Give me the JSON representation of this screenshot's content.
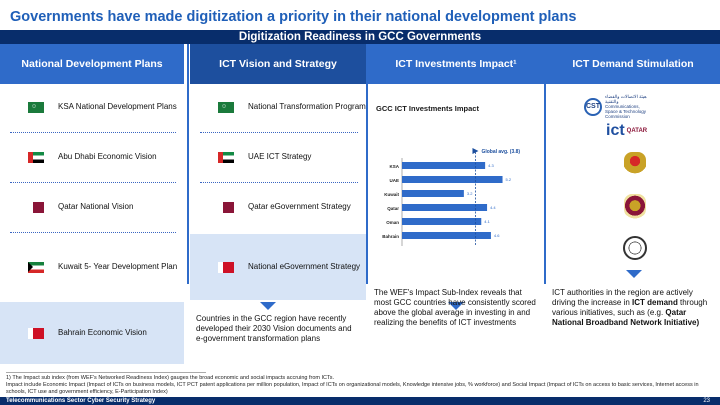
{
  "title": "Governments have made digitization a priority in their national development plans",
  "subtitle": "Digitization Readiness in GCC Governments",
  "columns": {
    "plans": {
      "header": "National Development Plans",
      "rows": [
        {
          "flag": "saudi-arabia-flag-icon",
          "label": "KSA National Development Plans"
        },
        {
          "flag": "uae-flag-icon",
          "label": "Abu Dhabi Economic Vision"
        },
        {
          "flag": "qatar-flag-icon",
          "label": "Qatar National Vision"
        },
        {
          "flag": "kuwait-flag-icon",
          "label": "Kuwait 5- Year Development Plan"
        },
        {
          "flag": "bahrain-flag-icon",
          "label": "Bahrain Economic Vision"
        }
      ]
    },
    "vision": {
      "header": "ICT Vision and Strategy",
      "rows": [
        {
          "flag": "saudi-arabia-flag-icon",
          "label": "National Transformation Program"
        },
        {
          "flag": "uae-flag-icon",
          "label": "UAE ICT Strategy"
        },
        {
          "flag": "qatar-flag-icon",
          "label": "Qatar eGovernment Strategy"
        },
        {
          "flag": "bahrain-flag-icon",
          "label": "National eGovernment Strategy"
        }
      ],
      "summary": "Countries in the GCC region have recently developed their 2030 Vision documents and e-government transformation plans"
    },
    "investments": {
      "header": "ICT Investments Impact¹",
      "summary": "The WEF's Impact Sub-Index reveals that most GCC countries have consistently scored above the global average in investing in and realizing the benefits of ICT investments"
    },
    "demand": {
      "header": "ICT Demand Stimulation",
      "summary_pre": "ICT authorities in the region are actively driving the increase in ",
      "summary_bold1": "ICT demand",
      "summary_mid": " through various initiatives, such as (e.g. ",
      "summary_bold2": "Qatar National Broadband Network Initiative)",
      "logos": [
        {
          "name": "cst-logo",
          "text": "CST",
          "caption": "هيئة الاتصالات والفضاء والتقنية Communications, Space & Technology Commission"
        },
        {
          "name": "ict-qatar-logo",
          "text": "ict",
          "caption": "QATAR"
        },
        {
          "name": "egypt-emblem-icon"
        },
        {
          "name": "jordan-emblem-icon"
        },
        {
          "name": "abu-dhabi-emblem-icon"
        }
      ]
    }
  },
  "chart_data": {
    "type": "bar",
    "orientation": "horizontal",
    "title": "GCC ICT Investments Impact",
    "categories": [
      "KSA",
      "UAE",
      "Kuwait",
      "Qatar",
      "Oman",
      "Bahrain"
    ],
    "values": [
      4.3,
      5.2,
      3.2,
      4.4,
      4.1,
      4.6
    ],
    "value_labels": [
      "4.3",
      "5.2",
      "3.2",
      "4.4",
      "4.1",
      "4.6"
    ],
    "reference_line": {
      "label": "Global avg. (3.8)",
      "value": 3.8
    },
    "xlim": [
      0,
      6
    ],
    "colors": {
      "bar": "#2f6bc9",
      "reference": "#1d4f9e"
    }
  },
  "footnotes": [
    "1) The Impact sub index (from WEF's Networked Readiness Index) gauges the broad economic and social impacts accruing from ICTs.",
    "Impact include Economic Impact (Impact of ICTs on business models, ICT PCT patent applications per million population, Impact of ICTs on organizational models, Knowledge intensive jobs, % workforce) and Social Impact (Impact of ICTs on access to basic services, Internet access in schools, ICT use and government efficiency, E-Participation Index)"
  ],
  "footer": {
    "text": "Telecommunications Sector Cyber Security Strategy",
    "page": "23"
  }
}
